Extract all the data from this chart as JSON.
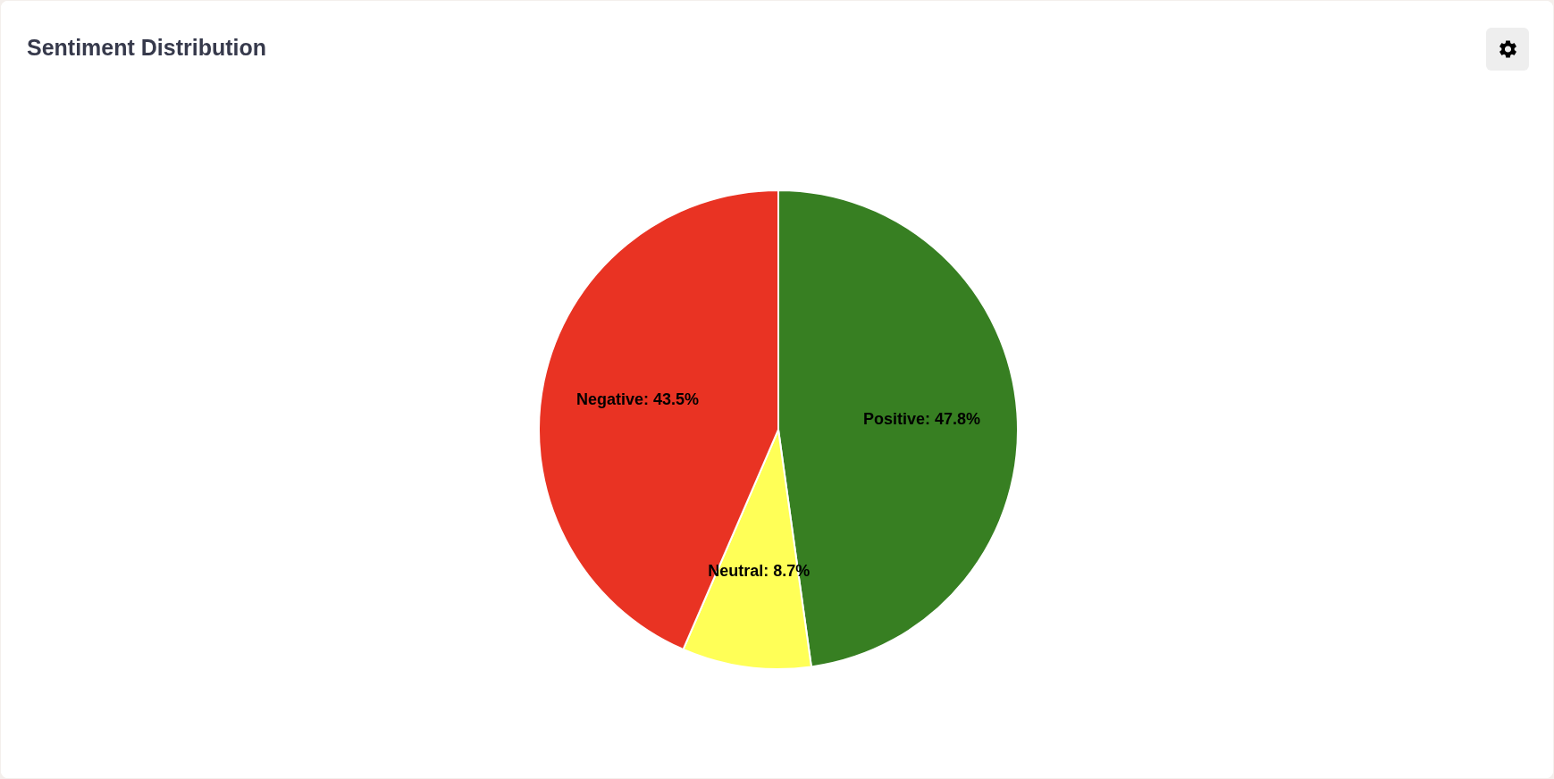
{
  "chart_data": {
    "type": "pie",
    "title": "Sentiment Distribution",
    "categories": [
      "Positive",
      "Neutral",
      "Negative"
    ],
    "values": [
      47.8,
      8.7,
      43.5
    ],
    "value_labels": [
      "47.8%",
      "8.7%",
      "43.5%"
    ],
    "colors": [
      "#377f22",
      "#ffff57",
      "#e93323"
    ]
  }
}
